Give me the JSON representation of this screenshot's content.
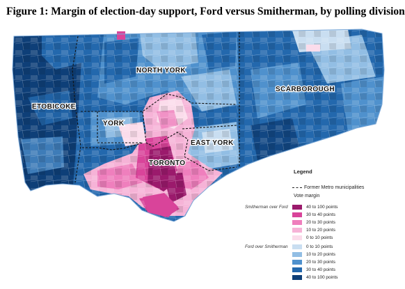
{
  "title": "Figure 1: Margin of election-day support, Ford versus Smitherman, by polling division",
  "regions": [
    "NORTH YORK",
    "SCARBOROUGH",
    "ETOBICOKE",
    "YORK",
    "EAST YORK",
    "TORONTO"
  ],
  "legend": {
    "title": "Legend",
    "former_metro": "Former Metro municipalities",
    "vote_margin": "Vote margin",
    "groups": [
      {
        "name": "Smitherman over Ford",
        "items": [
          {
            "label": "40 to 100 points",
            "color": "#9b1a6c"
          },
          {
            "label": "30 to 40 points",
            "color": "#d9449a"
          },
          {
            "label": "20 to 30 points",
            "color": "#ef7fbd"
          },
          {
            "label": "10 to 20 points",
            "color": "#f6b3d7"
          },
          {
            "label": "0 to 10 points",
            "color": "#fbdceb"
          }
        ]
      },
      {
        "name": "Ford over Smitherman",
        "items": [
          {
            "label": "0 to 10 points",
            "color": "#c9def1"
          },
          {
            "label": "10 to 20 points",
            "color": "#92bee4"
          },
          {
            "label": "20 to 30 points",
            "color": "#4f91cd"
          },
          {
            "label": "30 to 40 points",
            "color": "#2368ad"
          },
          {
            "label": "40 to 100 points",
            "color": "#0e3f78"
          }
        ]
      }
    ]
  }
}
